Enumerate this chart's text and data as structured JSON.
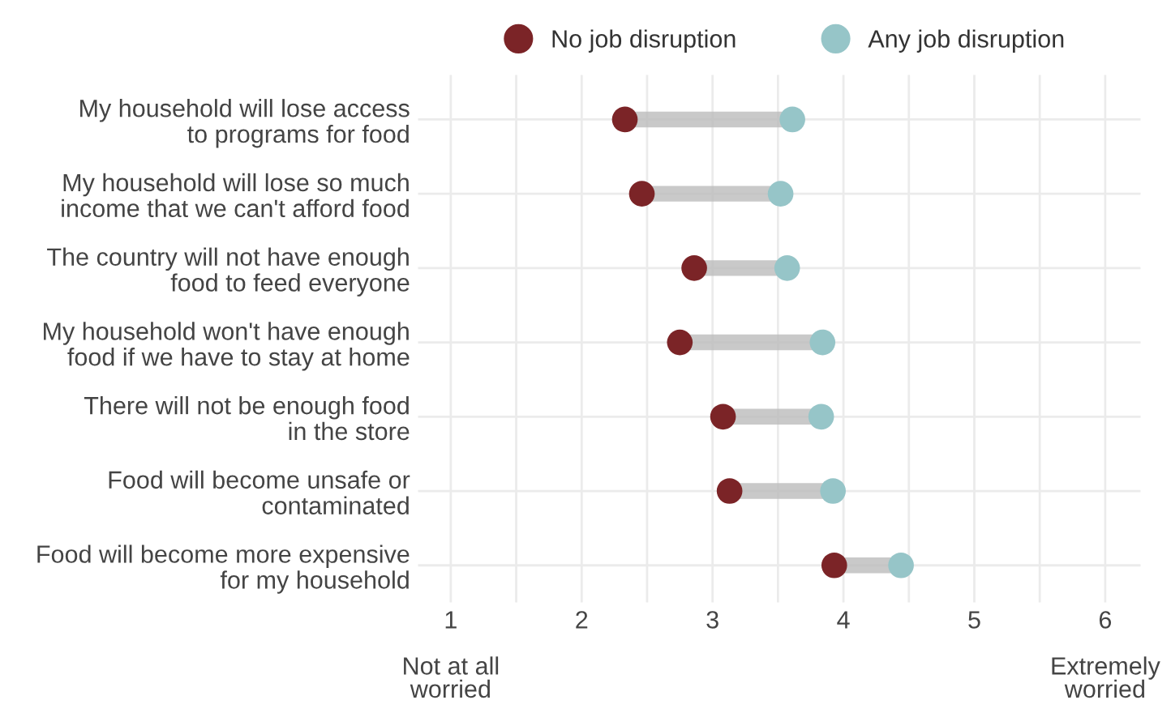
{
  "chart_data": {
    "type": "scatter",
    "orientation": "horizontal",
    "categories": [
      "My household will lose access\nto programs for food",
      "My household will lose so much\nincome that we can't afford food",
      "The country will not have enough\nfood to feed everyone",
      "My household won't have enough\nfood if we have to stay at home",
      "There will not be enough food\nin the store",
      "Food will become unsafe or\ncontaminated",
      "Food will become more expensive\nfor my household"
    ],
    "series": [
      {
        "name": "No job disruption",
        "color": "#7b2427",
        "values": [
          2.33,
          2.46,
          2.86,
          2.75,
          3.08,
          3.13,
          3.93
        ]
      },
      {
        "name": "Any job disruption",
        "color": "#96c5c8",
        "values": [
          3.61,
          3.52,
          3.57,
          3.84,
          3.83,
          3.92,
          4.44
        ]
      }
    ],
    "xlim": [
      0.75,
      6.27
    ],
    "xticks": [
      {
        "value": 1,
        "label": "1\n\nNot at all\nworried"
      },
      {
        "value": 1.5,
        "label": null
      },
      2,
      {
        "value": 2.5,
        "label": null
      },
      3,
      {
        "value": 3.5,
        "label": null
      },
      4,
      {
        "value": 4.5,
        "label": null
      },
      5,
      {
        "value": 5.5,
        "label": null
      },
      {
        "value": 6,
        "label": "6\n\nExtremely\nworried"
      }
    ],
    "grid": true,
    "legend": "top",
    "marker": "circle"
  }
}
